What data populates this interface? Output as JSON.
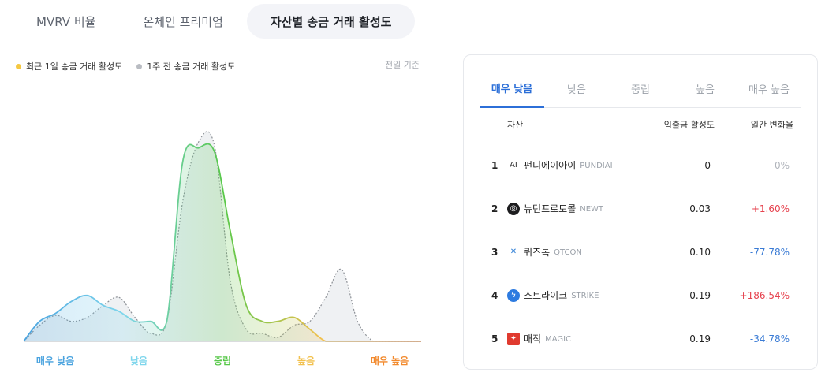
{
  "top_tabs": [
    {
      "label": "MVRV 비율",
      "active": false
    },
    {
      "label": "온체인 프리미엄",
      "active": false
    },
    {
      "label": "자산별 송금 거래 활성도",
      "active": true
    }
  ],
  "legend": {
    "current": {
      "label": "최근 1일 송금 거래 활성도",
      "color": "#f5c842"
    },
    "previous": {
      "label": "1주 전 송금 거래 활성도",
      "color": "#b9bcc2"
    }
  },
  "reference_note": "전일 기준",
  "chart_data": {
    "type": "area",
    "x_categories": [
      "매우 낮음",
      "낮음",
      "중립",
      "높음",
      "매우 높음"
    ],
    "category_colors": [
      "#4aa3df",
      "#7fd6ec",
      "#58c84a",
      "#f2c14e",
      "#f28a2e"
    ],
    "series": [
      {
        "name": "최근 1일 송금 거래 활성도",
        "x": [
          0,
          2,
          4,
          6,
          8,
          10,
          12,
          14,
          16,
          18,
          20,
          22,
          24,
          26,
          28,
          30,
          32,
          34,
          36,
          38,
          40,
          42,
          44,
          46,
          48,
          50
        ],
        "y": [
          0,
          10,
          14,
          20,
          23,
          18,
          15,
          10,
          10,
          10,
          90,
          97,
          95,
          55,
          18,
          10,
          10,
          12,
          6,
          0,
          0,
          0,
          0,
          0,
          0,
          0
        ]
      },
      {
        "name": "1주 전 송금 거래 활성도",
        "x": [
          0,
          2,
          4,
          6,
          8,
          10,
          12,
          14,
          16,
          18,
          20,
          22,
          24,
          26,
          28,
          30,
          32,
          34,
          36,
          38,
          40,
          42,
          44,
          46,
          48,
          50
        ],
        "y": [
          0,
          8,
          13,
          10,
          12,
          18,
          22,
          12,
          4,
          10,
          70,
          100,
          98,
          30,
          6,
          4,
          2,
          8,
          10,
          22,
          36,
          10,
          0,
          0,
          0,
          0
        ]
      }
    ],
    "ylim": [
      0,
      100
    ],
    "grid": false,
    "legend_position": "top-left"
  },
  "panel": {
    "tabs": [
      {
        "label": "매우 낮음",
        "active": true
      },
      {
        "label": "낮음",
        "active": false
      },
      {
        "label": "중립",
        "active": false
      },
      {
        "label": "높음",
        "active": false
      },
      {
        "label": "매우 높음",
        "active": false
      }
    ],
    "columns": {
      "asset": "자산",
      "activity": "입출금 활성도",
      "change": "일간 변화율"
    },
    "rows": [
      {
        "rank": "1",
        "name": "펀디에이아이",
        "symbol": "PUNDIAI",
        "activity": "0",
        "change": "0%",
        "change_color": "#b0b4bb",
        "icon": "pundiai-logo-icon",
        "icon_text": "AI",
        "icon_bg": "#ffffff",
        "icon_fg": "#333333"
      },
      {
        "rank": "2",
        "name": "뉴턴프로토콜",
        "symbol": "NEWT",
        "activity": "0.03",
        "change": "+1.60%",
        "change_color": "#e6424e",
        "icon": "newt-logo-icon",
        "icon_text": "◎",
        "icon_bg": "#1d1d1f",
        "icon_fg": "#ffffff"
      },
      {
        "rank": "3",
        "name": "퀴즈톡",
        "symbol": "QTCON",
        "activity": "0.10",
        "change": "-77.78%",
        "change_color": "#3a7bd5",
        "icon": "qtcon-logo-icon",
        "icon_text": "✕",
        "icon_bg": "#ffffff",
        "icon_fg": "#2f7fd6"
      },
      {
        "rank": "4",
        "name": "스트라이크",
        "symbol": "STRIKE",
        "activity": "0.19",
        "change": "+186.54%",
        "change_color": "#e6424e",
        "icon": "strike-logo-icon",
        "icon_text": "ϟ",
        "icon_bg": "#2d7be0",
        "icon_fg": "#ffffff"
      },
      {
        "rank": "5",
        "name": "매직",
        "symbol": "MAGIC",
        "activity": "0.19",
        "change": "-34.78%",
        "change_color": "#3a7bd5",
        "icon": "magic-logo-icon",
        "icon_text": "✦",
        "icon_bg": "#e03a2f",
        "icon_fg": "#ffffff"
      }
    ]
  }
}
